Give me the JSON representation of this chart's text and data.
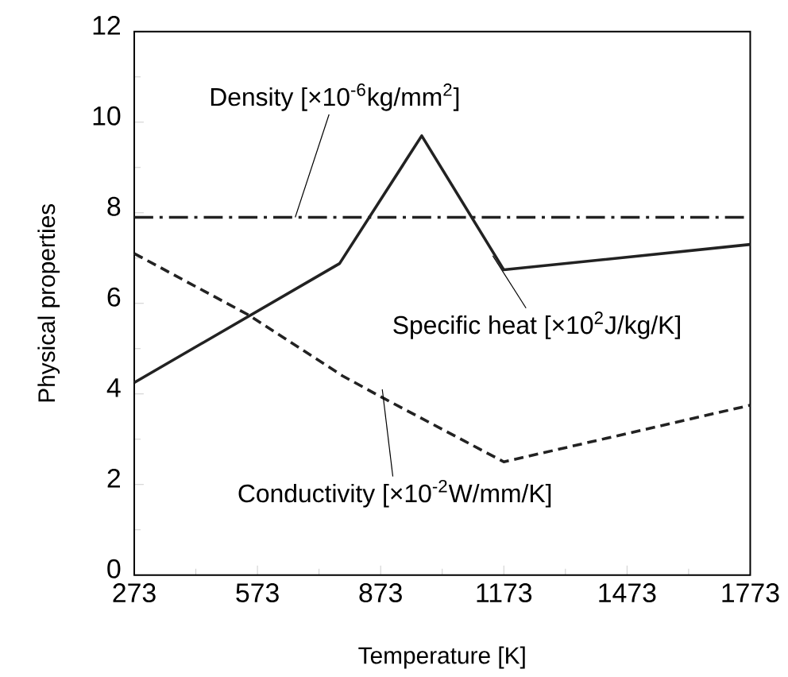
{
  "chart_data": {
    "type": "line",
    "xlabel": "Temperature [K]",
    "ylabel": "Physical properties",
    "xlim": [
      273,
      1773
    ],
    "xticks": [
      273,
      573,
      873,
      1173,
      1473,
      1773
    ],
    "ylim": [
      0,
      12
    ],
    "yticks": [
      0,
      2,
      4,
      6,
      8,
      10,
      12
    ],
    "grid": false,
    "marker": "none",
    "series": [
      {
        "color": "#222222",
        "line_style": "dashdotted",
        "x": [
          273,
          1773
        ],
        "values": [
          7.9,
          7.9
        ]
      },
      {
        "color": "#222222",
        "line_style": "solid",
        "x": [
          273,
          773,
          973,
          1173,
          1773
        ],
        "values": [
          4.25,
          6.88,
          9.7,
          6.74,
          7.3
        ]
      },
      {
        "color": "#222222",
        "line_style": "dashed",
        "x": [
          273,
          550,
          780,
          881,
          1173,
          1773
        ],
        "values": [
          7.1,
          5.75,
          4.4,
          3.9,
          2.5,
          3.75
        ]
      }
    ],
    "annotations": [
      {
        "text": "Density [×10$^{-6}$kg/mm$^{2}$]",
        "x": 665,
        "y": 7.9
      },
      {
        "text": "Specific heat [×10$^{2}$J/kg/K]",
        "x": 1146,
        "y": 7.05
      },
      {
        "text": "Conductivity [×10$^{-2}$W/mm/K]",
        "x": 877,
        "y": 4.1
      }
    ]
  }
}
